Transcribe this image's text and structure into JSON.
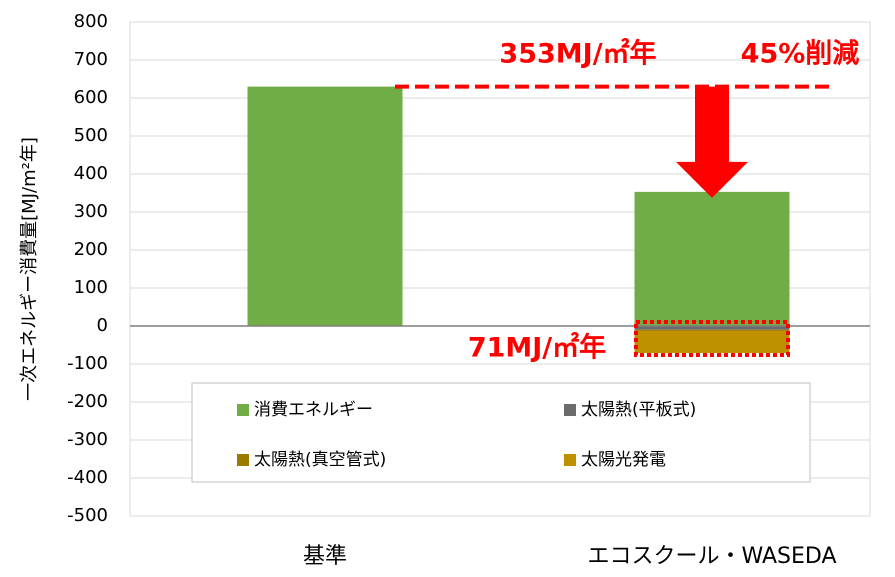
{
  "chart_data": {
    "type": "bar",
    "stacked": true,
    "ylabel": "一次エネルギー消費量[MJ/m²年]",
    "categories": [
      "基準",
      "エコスクール・WASEDA"
    ],
    "series": [
      {
        "name": "消費エネルギー",
        "color": "#70ad47",
        "values": [
          630,
          353
        ]
      },
      {
        "name": "太陽熱(平板式)",
        "color": "#6b6b6b",
        "values": [
          0,
          -10
        ]
      },
      {
        "name": "太陽熱(真空管式)",
        "color": "#9c7a00",
        "values": [
          0,
          -3
        ]
      },
      {
        "name": "太陽光発電",
        "color": "#bf9000",
        "values": [
          0,
          -58
        ]
      }
    ],
    "ylim": [
      -500,
      800
    ],
    "yticks": [
      -500,
      -400,
      -300,
      -200,
      -100,
      0,
      100,
      200,
      300,
      400,
      500,
      600,
      700,
      800
    ],
    "grid": true,
    "annotations": [
      "353MJ/㎡年",
      "45%削減",
      "71MJ/㎡年"
    ],
    "annotation_color": "#ff0000"
  }
}
